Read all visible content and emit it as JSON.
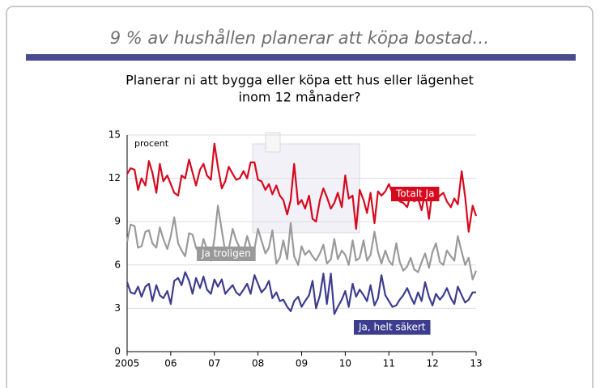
{
  "chart_data": {
    "type": "line",
    "title": "9 % av hushållen planerar att köpa bostad…",
    "subtitle": [
      "Planerar ni att bygga eller köpa ett hus eller lägenhet",
      "inom 12 månader?"
    ],
    "ylabel": "procent",
    "x": [
      2005,
      2005.08,
      2005.17,
      2005.25,
      2005.33,
      2005.42,
      2005.5,
      2005.58,
      2005.67,
      2005.75,
      2005.83,
      2005.92,
      2006,
      2006.08,
      2006.17,
      2006.25,
      2006.33,
      2006.42,
      2006.5,
      2006.58,
      2006.67,
      2006.75,
      2006.83,
      2006.92,
      2007,
      2007.08,
      2007.17,
      2007.25,
      2007.33,
      2007.42,
      2007.5,
      2007.58,
      2007.67,
      2007.75,
      2007.83,
      2007.92,
      2008,
      2008.08,
      2008.17,
      2008.25,
      2008.33,
      2008.42,
      2008.5,
      2008.58,
      2008.67,
      2008.75,
      2008.83,
      2008.92,
      2009,
      2009.08,
      2009.17,
      2009.25,
      2009.33,
      2009.42,
      2009.5,
      2009.58,
      2009.67,
      2009.75,
      2009.83,
      2009.92,
      2010,
      2010.08,
      2010.17,
      2010.25,
      2010.33,
      2010.42,
      2010.5,
      2010.58,
      2010.67,
      2010.75,
      2010.83,
      2010.92,
      2011,
      2011.08,
      2011.17,
      2011.25,
      2011.33,
      2011.42,
      2011.5,
      2011.58,
      2011.67,
      2011.75,
      2011.83,
      2011.92,
      2012,
      2012.08,
      2012.17,
      2012.25,
      2012.33,
      2012.42,
      2012.5,
      2012.58,
      2012.67,
      2012.75,
      2012.83,
      2012.92,
      2013
    ],
    "series": [
      {
        "name": "Totalt Ja",
        "color": "#d50a1e",
        "values": [
          12.3,
          12.7,
          12.6,
          11.2,
          12.0,
          11.5,
          13.2,
          12.4,
          11.0,
          13.0,
          11.8,
          12.2,
          11.6,
          11.0,
          10.8,
          12.2,
          12.0,
          13.3,
          12.4,
          11.5,
          12.6,
          13.0,
          12.2,
          11.9,
          14.4,
          12.8,
          11.3,
          11.8,
          12.8,
          12.3,
          11.9,
          12.0,
          12.5,
          12.0,
          13.1,
          13.1,
          11.9,
          11.8,
          11.2,
          11.6,
          10.9,
          11.5,
          10.8,
          10.5,
          9.5,
          10.5,
          13.0,
          10.2,
          10.5,
          9.9,
          10.8,
          9.2,
          9.0,
          10.5,
          11.3,
          10.7,
          9.9,
          10.3,
          11.0,
          10.0,
          12.2,
          10.6,
          10.8,
          8.5,
          11.2,
          10.5,
          9.6,
          11.0,
          8.9,
          11.1,
          10.8,
          11.1,
          11.6,
          11.0,
          10.7,
          10.4,
          10.3,
          10.0,
          10.9,
          10.4,
          10.6,
          9.8,
          11.0,
          9.2,
          11.2,
          10.5,
          10.8,
          11.0,
          10.4,
          10.0,
          10.6,
          10.2,
          12.5,
          10.7,
          8.3,
          10.1,
          9.4
        ]
      },
      {
        "name": "Ja troligen",
        "color": "#9a9a9a",
        "values": [
          7.6,
          8.8,
          8.7,
          7.2,
          7.3,
          8.3,
          8.4,
          7.5,
          7.2,
          8.6,
          7.8,
          7.1,
          8.0,
          9.3,
          7.5,
          7.0,
          6.6,
          8.2,
          8.1,
          7.2,
          6.7,
          7.8,
          7.1,
          6.3,
          7.8,
          10.1,
          8.4,
          6.9,
          7.1,
          8.5,
          7.7,
          7.2,
          6.9,
          8.0,
          7.2,
          7.1,
          8.5,
          7.7,
          6.8,
          7.2,
          8.4,
          6.1,
          6.5,
          7.7,
          6.4,
          8.9,
          6.6,
          6.0,
          7.3,
          6.7,
          7.0,
          6.6,
          6.3,
          6.8,
          7.4,
          6.1,
          6.4,
          7.8,
          6.4,
          7.0,
          6.7,
          6.0,
          7.7,
          6.3,
          6.5,
          7.7,
          6.3,
          6.7,
          8.3,
          6.9,
          6.1,
          7.0,
          6.3,
          6.0,
          7.5,
          6.2,
          5.6,
          5.9,
          6.5,
          5.7,
          5.5,
          6.2,
          6.8,
          5.8,
          6.9,
          7.5,
          6.2,
          6.0,
          7.0,
          6.6,
          6.3,
          8.0,
          6.9,
          6.0,
          6.5,
          5.0,
          5.6
        ]
      },
      {
        "name": "Ja, helt säkert",
        "color": "#3d3d8f",
        "values": [
          4.8,
          4.1,
          4.0,
          4.5,
          3.8,
          4.5,
          4.7,
          3.5,
          4.6,
          3.9,
          3.7,
          4.2,
          3.3,
          4.9,
          5.1,
          4.6,
          5.5,
          4.9,
          4.0,
          5.1,
          4.4,
          5.2,
          4.3,
          4.0,
          5.0,
          4.5,
          5.0,
          4.0,
          4.3,
          4.6,
          4.1,
          3.9,
          4.3,
          4.7,
          4.0,
          5.3,
          4.7,
          4.1,
          4.4,
          4.9,
          3.7,
          4.1,
          3.5,
          3.6,
          3.1,
          2.8,
          3.5,
          3.8,
          3.1,
          3.5,
          3.9,
          4.9,
          3.0,
          3.9,
          5.4,
          3.3,
          5.4,
          2.6,
          3.1,
          3.6,
          4.2,
          3.1,
          4.7,
          3.8,
          4.3,
          3.9,
          3.5,
          4.6,
          3.2,
          3.7,
          5.3,
          3.9,
          3.5,
          3.1,
          3.2,
          3.6,
          3.9,
          4.4,
          3.8,
          3.3,
          4.1,
          3.5,
          4.8,
          3.8,
          3.2,
          4.0,
          3.6,
          3.9,
          4.4,
          3.7,
          3.3,
          4.5,
          3.9,
          3.4,
          3.6,
          4.1,
          4.1
        ]
      }
    ],
    "xlim": [
      2005,
      2013
    ],
    "xticks": [
      2005,
      {
        "value": 2006,
        "label": "06"
      },
      {
        "value": 2007,
        "label": "07"
      },
      {
        "value": 2008,
        "label": "08"
      },
      {
        "value": 2009,
        "label": "09"
      },
      {
        "value": 2010,
        "label": "10"
      },
      {
        "value": 2011,
        "label": "11"
      },
      {
        "value": 2012,
        "label": "12"
      },
      {
        "value": 2013,
        "label": "13"
      }
    ],
    "ylim": [
      0,
      15
    ],
    "yticks": [
      0,
      3,
      6,
      9,
      12,
      15
    ],
    "grid": true
  }
}
